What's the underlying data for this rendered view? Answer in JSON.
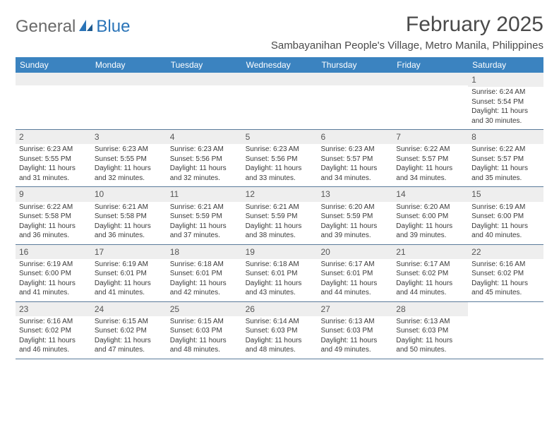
{
  "logo": {
    "general": "General",
    "blue": "Blue"
  },
  "title": "February 2025",
  "location": "Sambayanihan People's Village, Metro Manila, Philippines",
  "colors": {
    "header_bg": "#3b83c0",
    "header_text": "#ffffff",
    "shade_bg": "#eeeeee",
    "border": "#5a7a9a",
    "logo_gray": "#6a6a6a",
    "logo_blue": "#2a74b8",
    "text": "#3a3a3a"
  },
  "dayHeaders": [
    "Sunday",
    "Monday",
    "Tuesday",
    "Wednesday",
    "Thursday",
    "Friday",
    "Saturday"
  ],
  "weeks": [
    [
      {
        "blank": true
      },
      {
        "blank": true
      },
      {
        "blank": true
      },
      {
        "blank": true
      },
      {
        "blank": true
      },
      {
        "blank": true
      },
      {
        "num": "1",
        "sunrise": "Sunrise: 6:24 AM",
        "sunset": "Sunset: 5:54 PM",
        "daylight1": "Daylight: 11 hours",
        "daylight2": "and 30 minutes."
      }
    ],
    [
      {
        "num": "2",
        "sunrise": "Sunrise: 6:23 AM",
        "sunset": "Sunset: 5:55 PM",
        "daylight1": "Daylight: 11 hours",
        "daylight2": "and 31 minutes."
      },
      {
        "num": "3",
        "sunrise": "Sunrise: 6:23 AM",
        "sunset": "Sunset: 5:55 PM",
        "daylight1": "Daylight: 11 hours",
        "daylight2": "and 32 minutes."
      },
      {
        "num": "4",
        "sunrise": "Sunrise: 6:23 AM",
        "sunset": "Sunset: 5:56 PM",
        "daylight1": "Daylight: 11 hours",
        "daylight2": "and 32 minutes."
      },
      {
        "num": "5",
        "sunrise": "Sunrise: 6:23 AM",
        "sunset": "Sunset: 5:56 PM",
        "daylight1": "Daylight: 11 hours",
        "daylight2": "and 33 minutes."
      },
      {
        "num": "6",
        "sunrise": "Sunrise: 6:23 AM",
        "sunset": "Sunset: 5:57 PM",
        "daylight1": "Daylight: 11 hours",
        "daylight2": "and 34 minutes."
      },
      {
        "num": "7",
        "sunrise": "Sunrise: 6:22 AM",
        "sunset": "Sunset: 5:57 PM",
        "daylight1": "Daylight: 11 hours",
        "daylight2": "and 34 minutes."
      },
      {
        "num": "8",
        "sunrise": "Sunrise: 6:22 AM",
        "sunset": "Sunset: 5:57 PM",
        "daylight1": "Daylight: 11 hours",
        "daylight2": "and 35 minutes."
      }
    ],
    [
      {
        "num": "9",
        "sunrise": "Sunrise: 6:22 AM",
        "sunset": "Sunset: 5:58 PM",
        "daylight1": "Daylight: 11 hours",
        "daylight2": "and 36 minutes."
      },
      {
        "num": "10",
        "sunrise": "Sunrise: 6:21 AM",
        "sunset": "Sunset: 5:58 PM",
        "daylight1": "Daylight: 11 hours",
        "daylight2": "and 36 minutes."
      },
      {
        "num": "11",
        "sunrise": "Sunrise: 6:21 AM",
        "sunset": "Sunset: 5:59 PM",
        "daylight1": "Daylight: 11 hours",
        "daylight2": "and 37 minutes."
      },
      {
        "num": "12",
        "sunrise": "Sunrise: 6:21 AM",
        "sunset": "Sunset: 5:59 PM",
        "daylight1": "Daylight: 11 hours",
        "daylight2": "and 38 minutes."
      },
      {
        "num": "13",
        "sunrise": "Sunrise: 6:20 AM",
        "sunset": "Sunset: 5:59 PM",
        "daylight1": "Daylight: 11 hours",
        "daylight2": "and 39 minutes."
      },
      {
        "num": "14",
        "sunrise": "Sunrise: 6:20 AM",
        "sunset": "Sunset: 6:00 PM",
        "daylight1": "Daylight: 11 hours",
        "daylight2": "and 39 minutes."
      },
      {
        "num": "15",
        "sunrise": "Sunrise: 6:19 AM",
        "sunset": "Sunset: 6:00 PM",
        "daylight1": "Daylight: 11 hours",
        "daylight2": "and 40 minutes."
      }
    ],
    [
      {
        "num": "16",
        "sunrise": "Sunrise: 6:19 AM",
        "sunset": "Sunset: 6:00 PM",
        "daylight1": "Daylight: 11 hours",
        "daylight2": "and 41 minutes."
      },
      {
        "num": "17",
        "sunrise": "Sunrise: 6:19 AM",
        "sunset": "Sunset: 6:01 PM",
        "daylight1": "Daylight: 11 hours",
        "daylight2": "and 41 minutes."
      },
      {
        "num": "18",
        "sunrise": "Sunrise: 6:18 AM",
        "sunset": "Sunset: 6:01 PM",
        "daylight1": "Daylight: 11 hours",
        "daylight2": "and 42 minutes."
      },
      {
        "num": "19",
        "sunrise": "Sunrise: 6:18 AM",
        "sunset": "Sunset: 6:01 PM",
        "daylight1": "Daylight: 11 hours",
        "daylight2": "and 43 minutes."
      },
      {
        "num": "20",
        "sunrise": "Sunrise: 6:17 AM",
        "sunset": "Sunset: 6:01 PM",
        "daylight1": "Daylight: 11 hours",
        "daylight2": "and 44 minutes."
      },
      {
        "num": "21",
        "sunrise": "Sunrise: 6:17 AM",
        "sunset": "Sunset: 6:02 PM",
        "daylight1": "Daylight: 11 hours",
        "daylight2": "and 44 minutes."
      },
      {
        "num": "22",
        "sunrise": "Sunrise: 6:16 AM",
        "sunset": "Sunset: 6:02 PM",
        "daylight1": "Daylight: 11 hours",
        "daylight2": "and 45 minutes."
      }
    ],
    [
      {
        "num": "23",
        "sunrise": "Sunrise: 6:16 AM",
        "sunset": "Sunset: 6:02 PM",
        "daylight1": "Daylight: 11 hours",
        "daylight2": "and 46 minutes."
      },
      {
        "num": "24",
        "sunrise": "Sunrise: 6:15 AM",
        "sunset": "Sunset: 6:02 PM",
        "daylight1": "Daylight: 11 hours",
        "daylight2": "and 47 minutes."
      },
      {
        "num": "25",
        "sunrise": "Sunrise: 6:15 AM",
        "sunset": "Sunset: 6:03 PM",
        "daylight1": "Daylight: 11 hours",
        "daylight2": "and 48 minutes."
      },
      {
        "num": "26",
        "sunrise": "Sunrise: 6:14 AM",
        "sunset": "Sunset: 6:03 PM",
        "daylight1": "Daylight: 11 hours",
        "daylight2": "and 48 minutes."
      },
      {
        "num": "27",
        "sunrise": "Sunrise: 6:13 AM",
        "sunset": "Sunset: 6:03 PM",
        "daylight1": "Daylight: 11 hours",
        "daylight2": "and 49 minutes."
      },
      {
        "num": "28",
        "sunrise": "Sunrise: 6:13 AM",
        "sunset": "Sunset: 6:03 PM",
        "daylight1": "Daylight: 11 hours",
        "daylight2": "and 50 minutes."
      },
      {
        "blank": true
      }
    ]
  ]
}
